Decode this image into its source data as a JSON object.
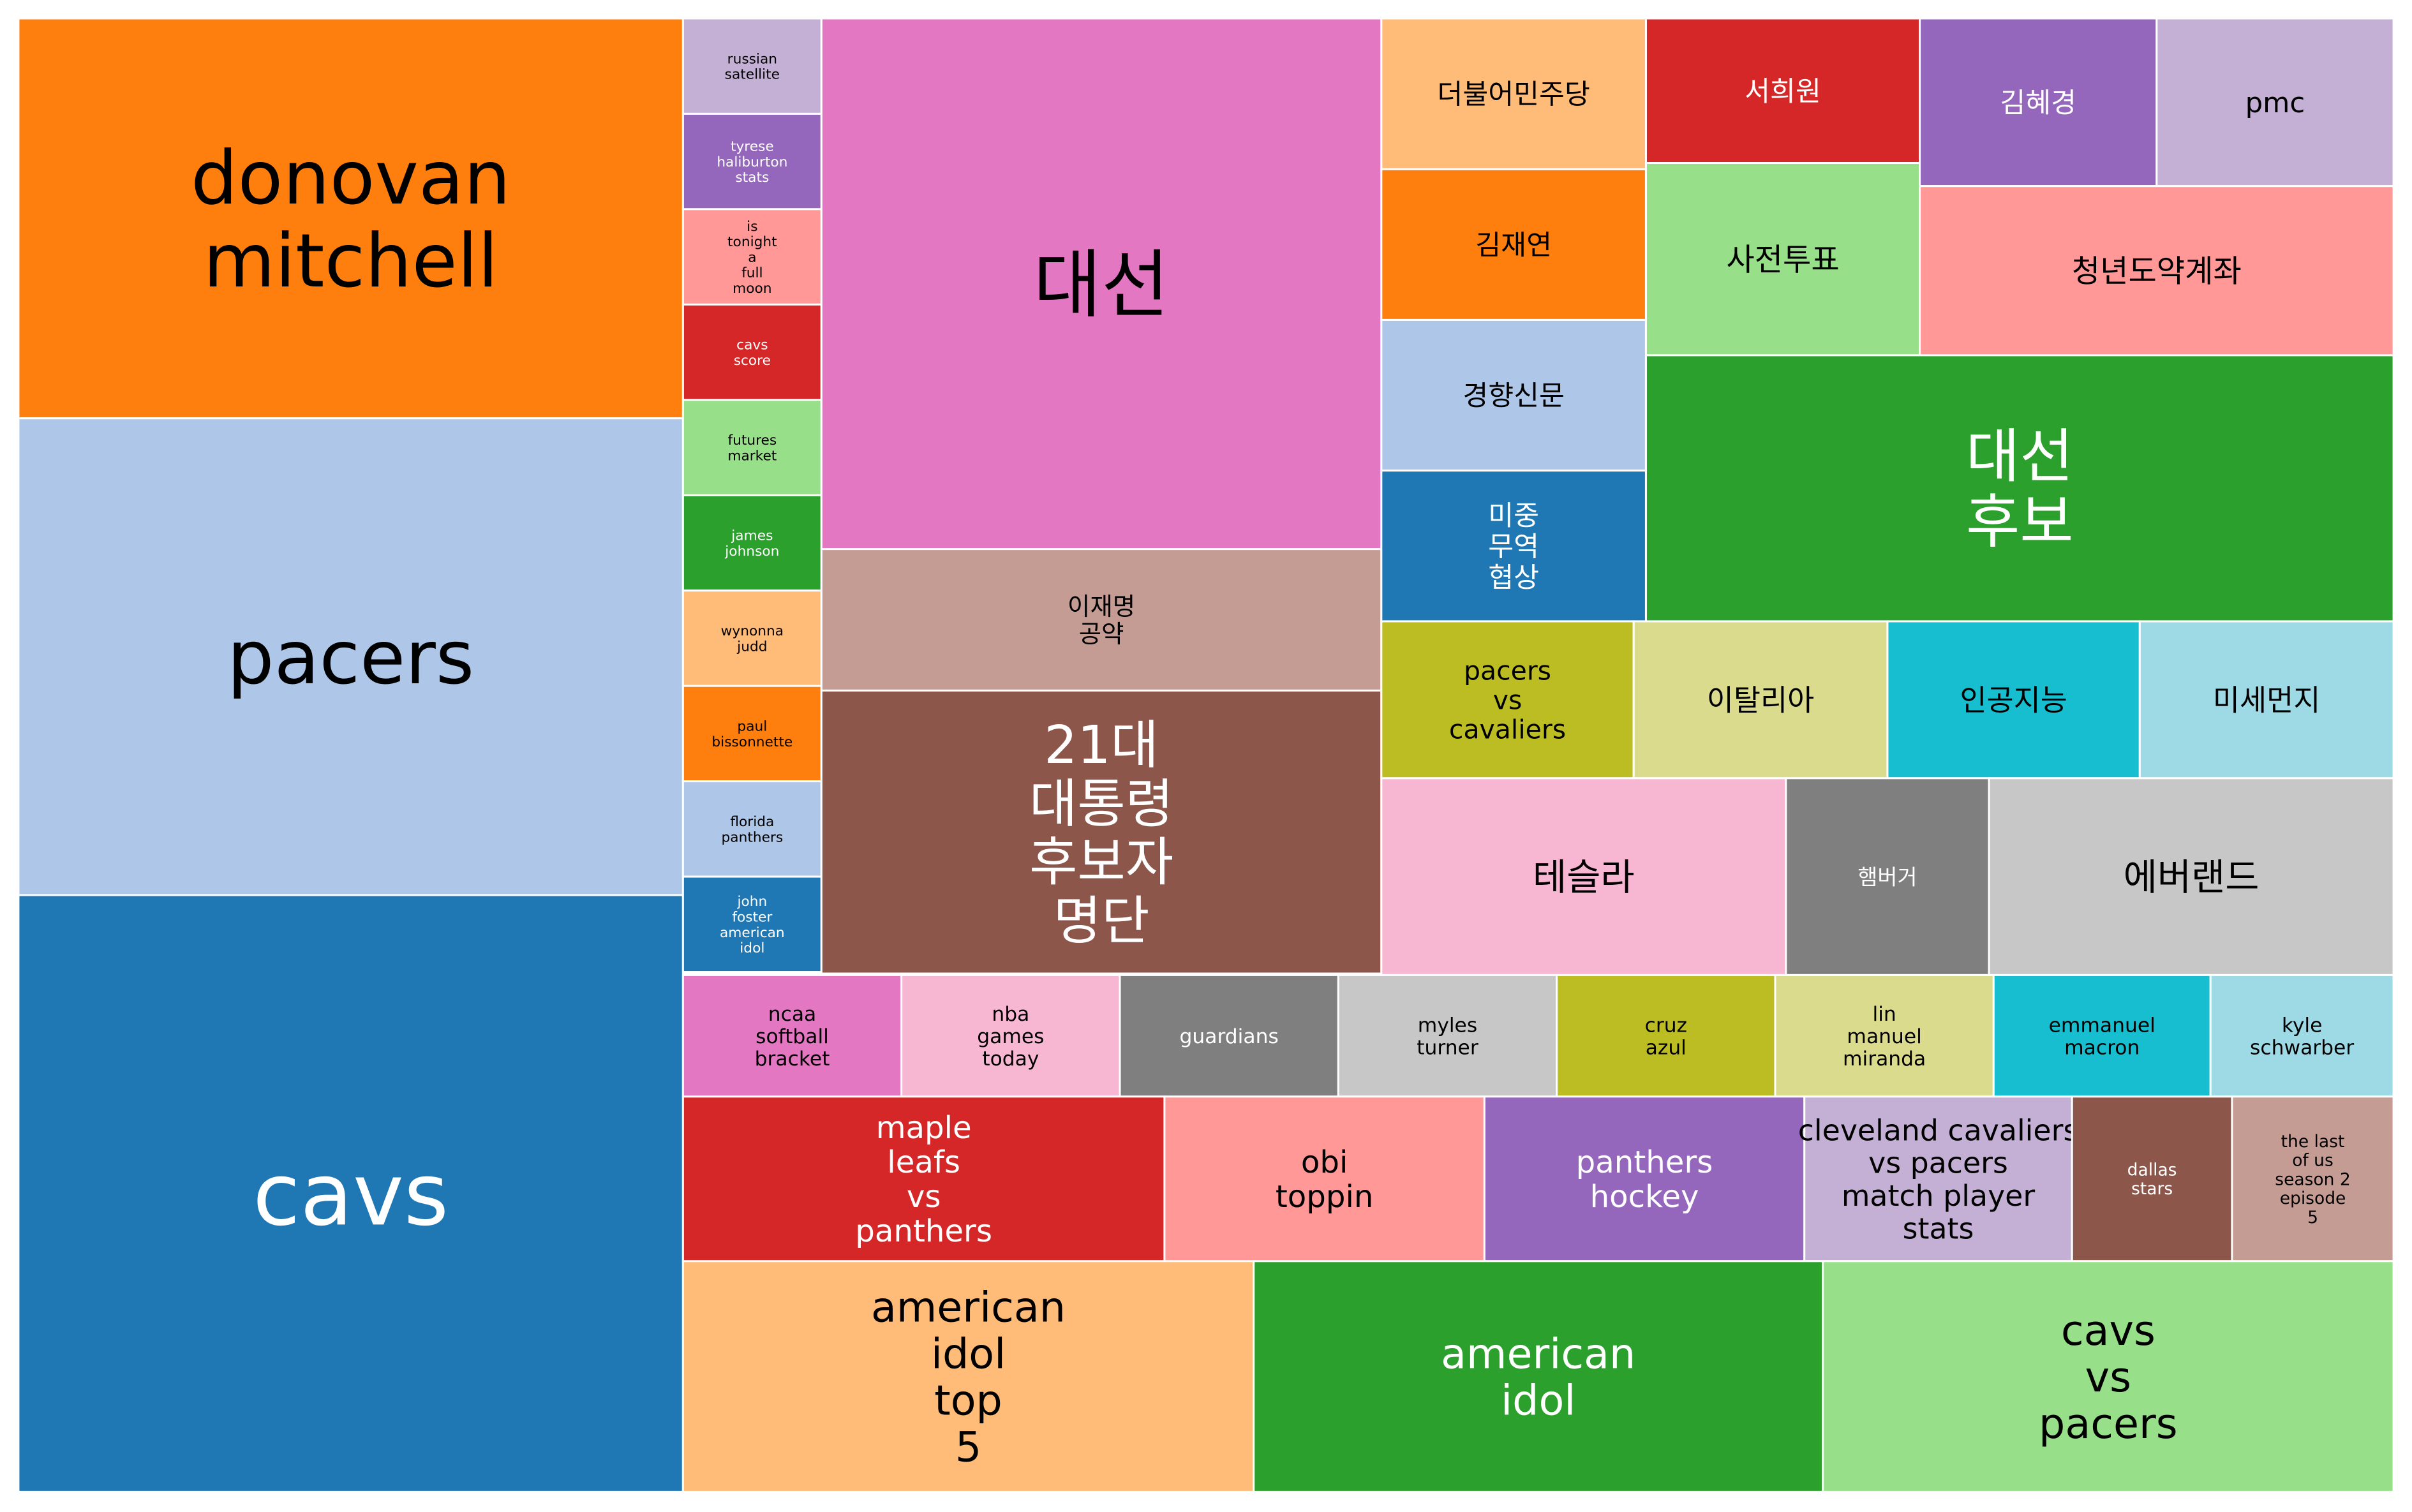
{
  "chart_data": {
    "type": "treemap",
    "title": "",
    "items": [
      {
        "label": "donovan mitchell",
        "color": "#ff7f0e",
        "text_color": "#000000",
        "size": 1.0
      },
      {
        "label": "pacers",
        "color": "#aec7e8",
        "text_color": "#000000",
        "size": 1.2
      },
      {
        "label": "cavs",
        "color": "#1f77b4",
        "text_color": "#ffffff",
        "size": 1.5
      },
      {
        "label": "russian satellite",
        "color": "#c5b0d5",
        "text_color": "#000000",
        "size": 0.03
      },
      {
        "label": "tyrese haliburton stats",
        "color": "#9467bd",
        "text_color": "#ffffff",
        "size": 0.03
      },
      {
        "label": "is tonight a full moon",
        "color": "#ff9896",
        "text_color": "#000000",
        "size": 0.03
      },
      {
        "label": "cavs score",
        "color": "#d62728",
        "text_color": "#ffffff",
        "size": 0.03
      },
      {
        "label": "futures market",
        "color": "#98df8a",
        "text_color": "#000000",
        "size": 0.03
      },
      {
        "label": "james johnson",
        "color": "#2ca02c",
        "text_color": "#ffffff",
        "size": 0.03
      },
      {
        "label": "wynonna judd",
        "color": "#ffbb78",
        "text_color": "#000000",
        "size": 0.03
      },
      {
        "label": "paul bissonnette",
        "color": "#ff7f0e",
        "text_color": "#000000",
        "size": 0.03
      },
      {
        "label": "florida panthers",
        "color": "#aec7e8",
        "text_color": "#000000",
        "size": 0.03
      },
      {
        "label": "john foster american idol",
        "color": "#1f77b4",
        "text_color": "#ffffff",
        "size": 0.03
      },
      {
        "label": "대선",
        "color": "#e377c2",
        "text_color": "#000000",
        "size": 0.7
      },
      {
        "label": "이재명 공약",
        "color": "#c49c94",
        "text_color": "#000000",
        "size": 0.18
      },
      {
        "label": "21대 대통령 후보자 명단",
        "color": "#8c564b",
        "text_color": "#ffffff",
        "size": 0.36
      },
      {
        "label": "더불어민주당",
        "color": "#ffbb78",
        "text_color": "#000000",
        "size": 0.09
      },
      {
        "label": "김재연",
        "color": "#ff7f0e",
        "text_color": "#000000",
        "size": 0.09
      },
      {
        "label": "경향신문",
        "color": "#aec7e8",
        "text_color": "#000000",
        "size": 0.09
      },
      {
        "label": "미중 무역 협상",
        "color": "#1f77b4",
        "text_color": "#ffffff",
        "size": 0.09
      },
      {
        "label": "서희원",
        "color": "#d62728",
        "text_color": "#ffffff",
        "size": 0.09
      },
      {
        "label": "사전투표",
        "color": "#98df8a",
        "text_color": "#000000",
        "size": 0.12
      },
      {
        "label": "김혜경",
        "color": "#9467bd",
        "text_color": "#ffffff",
        "size": 0.09
      },
      {
        "label": "pmc",
        "color": "#c5b0d5",
        "text_color": "#000000",
        "size": 0.09
      },
      {
        "label": "청년도약계좌",
        "color": "#ff9896",
        "text_color": "#000000",
        "size": 0.15
      },
      {
        "label": "대선 후보",
        "color": "#2ca02c",
        "text_color": "#ffffff",
        "size": 0.36
      },
      {
        "label": "pacers vs cavaliers",
        "color": "#bcbd22",
        "text_color": "#000000",
        "size": 0.08
      },
      {
        "label": "이탈리아",
        "color": "#dbdb8d",
        "text_color": "#000000",
        "size": 0.08
      },
      {
        "label": "인공지능",
        "color": "#17becf",
        "text_color": "#000000",
        "size": 0.08
      },
      {
        "label": "미세먼지",
        "color": "#9edae5",
        "text_color": "#000000",
        "size": 0.08
      },
      {
        "label": "테슬라",
        "color": "#f7b6d2",
        "text_color": "#000000",
        "size": 0.15
      },
      {
        "label": "햄버거",
        "color": "#7f7f7f",
        "text_color": "#ffffff",
        "size": 0.07
      },
      {
        "label": "에버랜드",
        "color": "#c7c7c7",
        "text_color": "#000000",
        "size": 0.15
      },
      {
        "label": "ncaa softball bracket",
        "color": "#e377c2",
        "text_color": "#000000",
        "size": 0.05
      },
      {
        "label": "nba games today",
        "color": "#f7b6d2",
        "text_color": "#000000",
        "size": 0.05
      },
      {
        "label": "guardians",
        "color": "#7f7f7f",
        "text_color": "#ffffff",
        "size": 0.05
      },
      {
        "label": "myles turner",
        "color": "#c7c7c7",
        "text_color": "#000000",
        "size": 0.05
      },
      {
        "label": "cruz azul",
        "color": "#bcbd22",
        "text_color": "#000000",
        "size": 0.05
      },
      {
        "label": "lin manuel miranda",
        "color": "#dbdb8d",
        "text_color": "#000000",
        "size": 0.05
      },
      {
        "label": "emmanuel macron",
        "color": "#17becf",
        "text_color": "#000000",
        "size": 0.05
      },
      {
        "label": "kyle schwarber",
        "color": "#9edae5",
        "text_color": "#000000",
        "size": 0.05
      },
      {
        "label": "maple leafs vs panthers",
        "color": "#d62728",
        "text_color": "#ffffff",
        "size": 0.13
      },
      {
        "label": "obi toppin",
        "color": "#ff9896",
        "text_color": "#000000",
        "size": 0.09
      },
      {
        "label": "panthers hockey",
        "color": "#9467bd",
        "text_color": "#ffffff",
        "size": 0.09
      },
      {
        "label": "cleveland cavaliers vs pacers match player stats",
        "color": "#c5b0d5",
        "text_color": "#000000",
        "size": 0.075
      },
      {
        "label": "dallas stars",
        "color": "#8c564b",
        "text_color": "#ffffff",
        "size": 0.045
      },
      {
        "label": "the last of us season 2 episode 5",
        "color": "#c49c94",
        "text_color": "#000000",
        "size": 0.045
      },
      {
        "label": "american idol top 5",
        "color": "#ffbb78",
        "text_color": "#000000",
        "size": 0.3
      },
      {
        "label": "american idol",
        "color": "#2ca02c",
        "text_color": "#ffffff",
        "size": 0.3
      },
      {
        "label": "cavs vs pacers",
        "color": "#98df8a",
        "text_color": "#000000",
        "size": 0.3
      }
    ]
  }
}
